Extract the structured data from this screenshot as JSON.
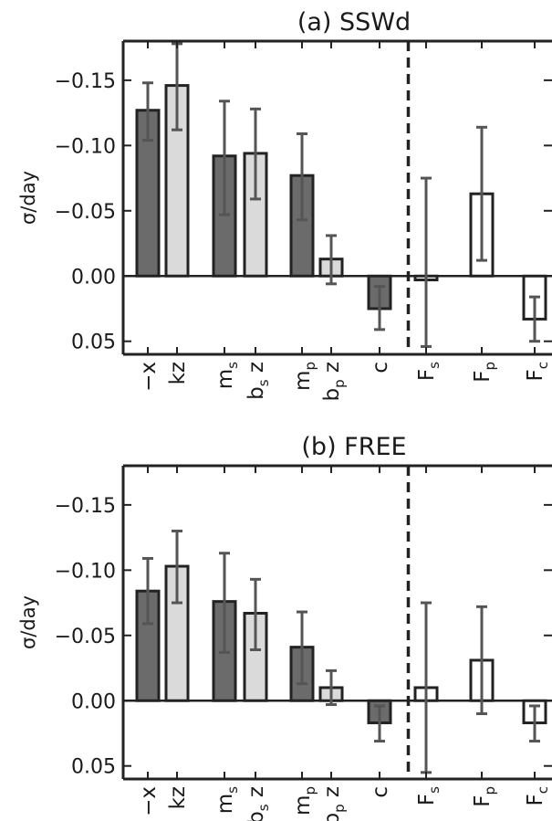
{
  "chart_data": [
    {
      "type": "bar",
      "title": "(a) SSWd",
      "ylabel": "σ/day",
      "xlabel": "",
      "ylim": [
        0.06,
        -0.18
      ],
      "yticks": [
        -0.15,
        -0.1,
        -0.05,
        0.0,
        0.05
      ],
      "ytick_labels": [
        "−0.15",
        "−0.10",
        "−0.05",
        "0.00",
        "0.05"
      ],
      "categories": [
        "−x",
        "kz",
        "m_s",
        "b_s z",
        "m_p",
        "b_p z",
        "c",
        "F_s",
        "F_p",
        "F_c"
      ],
      "values": [
        -0.127,
        -0.146,
        -0.092,
        -0.094,
        -0.077,
        -0.013,
        0.025,
        0.003,
        -0.063,
        0.033
      ],
      "err_low": [
        -0.104,
        -0.112,
        -0.047,
        -0.059,
        -0.043,
        0.006,
        0.041,
        0.054,
        -0.012,
        0.05
      ],
      "err_high": [
        -0.148,
        -0.178,
        -0.134,
        -0.128,
        -0.109,
        -0.031,
        0.008,
        -0.075,
        -0.114,
        0.016
      ],
      "styles": [
        "dark",
        "light",
        "dark",
        "light",
        "dark",
        "light",
        "dark",
        "white",
        "white",
        "white"
      ],
      "divider_after": "c"
    },
    {
      "type": "bar",
      "title": "(b) FREE",
      "ylabel": "σ/day",
      "xlabel": "",
      "ylim": [
        0.06,
        -0.18
      ],
      "yticks": [
        -0.15,
        -0.1,
        -0.05,
        0.0,
        0.05
      ],
      "ytick_labels": [
        "−0.15",
        "−0.10",
        "−0.05",
        "0.00",
        "0.05"
      ],
      "categories": [
        "−x",
        "kz",
        "m_s",
        "b_s z",
        "m_p",
        "b_p z",
        "c",
        "F_s",
        "F_p",
        "F_c"
      ],
      "values": [
        -0.084,
        -0.103,
        -0.076,
        -0.067,
        -0.041,
        -0.01,
        0.017,
        -0.01,
        -0.031,
        0.017
      ],
      "err_low": [
        -0.059,
        -0.075,
        -0.037,
        -0.039,
        -0.013,
        0.003,
        0.031,
        0.055,
        0.01,
        0.031
      ],
      "err_high": [
        -0.109,
        -0.13,
        -0.113,
        -0.093,
        -0.068,
        -0.023,
        0.004,
        -0.075,
        -0.072,
        0.004
      ],
      "styles": [
        "dark",
        "light",
        "dark",
        "light",
        "dark",
        "light",
        "dark",
        "white",
        "white",
        "white"
      ],
      "divider_after": "c"
    }
  ],
  "colors": {
    "dark_bar": "#6b6b6b",
    "light_bar": "#dadada",
    "white_bar": "#ffffff",
    "bar_edge": "#222222",
    "error_bar": "#555555",
    "axes": "#222222"
  }
}
